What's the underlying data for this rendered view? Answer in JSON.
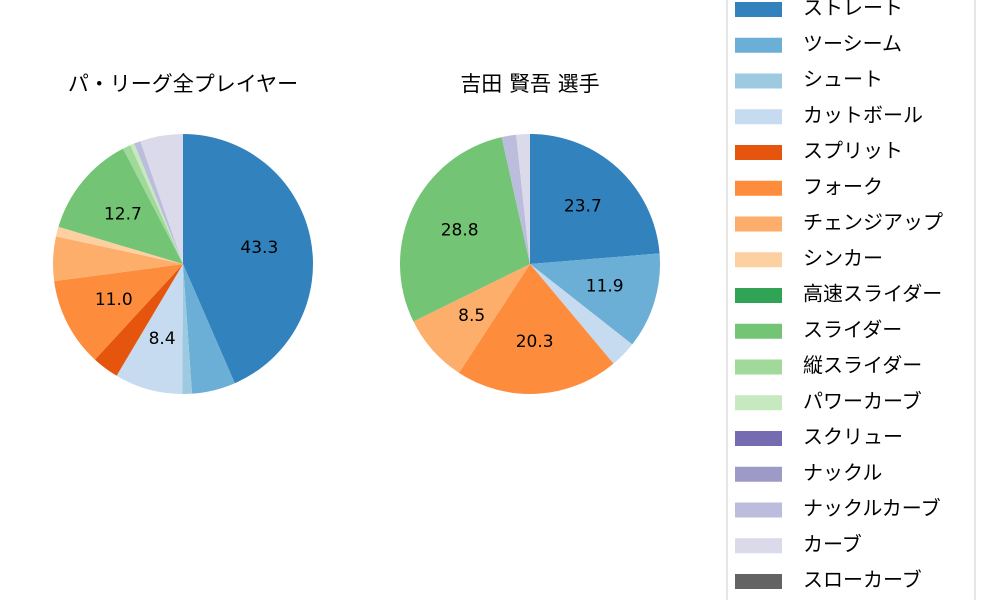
{
  "legend": {
    "labels": [
      "ストレート",
      "ツーシーム",
      "シュート",
      "カットボール",
      "スプリット",
      "フォーク",
      "チェンジアップ",
      "シンカー",
      "高速スライダー",
      "スライダー",
      "縦スライダー",
      "パワーカーブ",
      "スクリュー",
      "ナックル",
      "ナックルカーブ",
      "カーブ",
      "スローカーブ"
    ],
    "colors": [
      "#3182bd",
      "#6baed6",
      "#9ecae1",
      "#c6dbef",
      "#e6550d",
      "#fd8d3c",
      "#fdae6b",
      "#fdd0a2",
      "#31a354",
      "#74c476",
      "#a1d99b",
      "#c7e9c0",
      "#756bb1",
      "#9e9ac8",
      "#bcbddc",
      "#dadaeb",
      "#636363"
    ]
  },
  "chart_data": [
    {
      "type": "pie",
      "title": "パ・リーグ全プレイヤー",
      "values": [
        43.3,
        5.4,
        1.2,
        8.4,
        3.3,
        11.0,
        5.5,
        1.2,
        0,
        12.7,
        1.0,
        0.5,
        0,
        0,
        0.8,
        5.3,
        0
      ],
      "value_labels": [
        "43.3",
        null,
        null,
        "8.4",
        null,
        "11.0",
        null,
        null,
        null,
        "12.7",
        null,
        null,
        null,
        null,
        null,
        null,
        null
      ]
    },
    {
      "type": "pie",
      "title": "吉田 賢吾  選手",
      "values": [
        23.7,
        11.9,
        0,
        3.3,
        0,
        20.3,
        8.5,
        0,
        0,
        28.8,
        0,
        0,
        0,
        0,
        1.8,
        1.7,
        0
      ],
      "value_labels": [
        "23.7",
        "11.9",
        null,
        null,
        null,
        "20.3",
        "8.5",
        null,
        null,
        "28.8",
        null,
        null,
        null,
        null,
        null,
        null,
        null
      ]
    }
  ]
}
